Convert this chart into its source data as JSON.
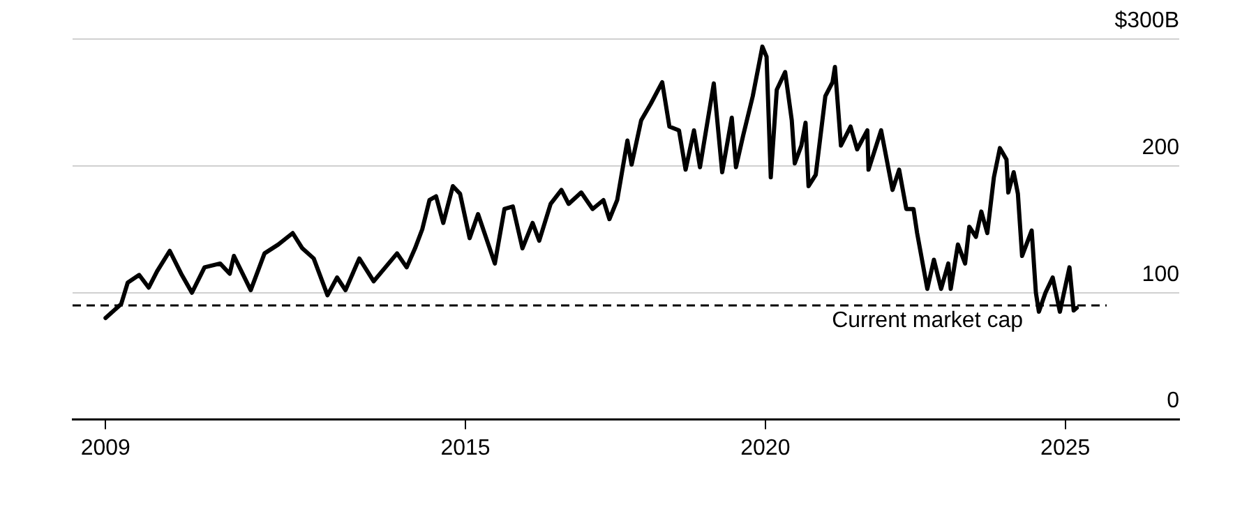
{
  "chart_data": {
    "type": "line",
    "xlim": [
      2008.45,
      2026.9
    ],
    "xticks": [
      2009,
      2015,
      2020,
      2025
    ],
    "ylim": [
      0,
      300
    ],
    "yticks": [
      0,
      100,
      200,
      {
        "value": 300,
        "label": "$300B"
      }
    ],
    "grid": "y",
    "legend": false,
    "marker": "none",
    "line_style": "solid",
    "x": [
      2009.0,
      2009.26,
      2009.37,
      2009.56,
      2009.72,
      2009.86,
      2010.07,
      2010.26,
      2010.44,
      2010.65,
      2010.91,
      2011.07,
      2011.14,
      2011.42,
      2011.65,
      2011.88,
      2012.12,
      2012.28,
      2012.47,
      2012.7,
      2012.86,
      2013.0,
      2013.23,
      2013.47,
      2013.86,
      2014.02,
      2014.16,
      2014.28,
      2014.4,
      2014.51,
      2014.63,
      2014.79,
      2014.91,
      2015.07,
      2015.21,
      2015.49,
      2015.65,
      2015.79,
      2015.95,
      2016.12,
      2016.23,
      2016.42,
      2016.6,
      2016.72,
      2016.93,
      2017.12,
      2017.3,
      2017.4,
      2017.53,
      2017.7,
      2017.77,
      2017.93,
      2018.09,
      2018.28,
      2018.4,
      2018.56,
      2018.67,
      2018.81,
      2018.91,
      2019.14,
      2019.28,
      2019.44,
      2019.51,
      2019.63,
      2019.79,
      2019.95,
      2020.02,
      2020.09,
      2020.19,
      2020.33,
      2020.44,
      2020.49,
      2020.6,
      2020.67,
      2020.72,
      2020.84,
      2021.0,
      2021.12,
      2021.16,
      2021.26,
      2021.42,
      2021.53,
      2021.7,
      2021.72,
      2021.93,
      2022.12,
      2022.23,
      2022.35,
      2022.47,
      2022.53,
      2022.7,
      2022.81,
      2022.93,
      2023.05,
      2023.09,
      2023.21,
      2023.33,
      2023.4,
      2023.51,
      2023.6,
      2023.7,
      2023.81,
      2023.91,
      2024.02,
      2024.05,
      2024.14,
      2024.21,
      2024.28,
      2024.44,
      2024.51,
      2024.56,
      2024.67,
      2024.79,
      2024.91,
      2025.07,
      2025.14,
      2025.19
    ],
    "series": [
      {
        "color": "#000000",
        "values": [
          80,
          91,
          108,
          114,
          104,
          117,
          133,
          115,
          100,
          120,
          123,
          115,
          129,
          102,
          131,
          138,
          147,
          135,
          127,
          98,
          112,
          102,
          127,
          109,
          131,
          120,
          135,
          150,
          173,
          176,
          155,
          184,
          178,
          143,
          162,
          123,
          166,
          168,
          135,
          155,
          141,
          170,
          181,
          170,
          179,
          166,
          173,
          158,
          173,
          220,
          201,
          236,
          249,
          266,
          231,
          228,
          197,
          228,
          199,
          265,
          195,
          238,
          199,
          224,
          255,
          294,
          286,
          191,
          260,
          274,
          236,
          202,
          216,
          234,
          184,
          193,
          255,
          266,
          278,
          216,
          231,
          213,
          228,
          197,
          228,
          181,
          197,
          166,
          166,
          147,
          103,
          126,
          103,
          123,
          103,
          138,
          123,
          152,
          144,
          164,
          147,
          191,
          214,
          205,
          179,
          195,
          178,
          129,
          149,
          100,
          85,
          100,
          112,
          85,
          120,
          86,
          88
        ]
      }
    ],
    "ref_lines": [
      {
        "axis": "y",
        "value": 90,
        "label": "Current market cap",
        "color": "#000000",
        "line_style": "dashed"
      }
    ]
  }
}
